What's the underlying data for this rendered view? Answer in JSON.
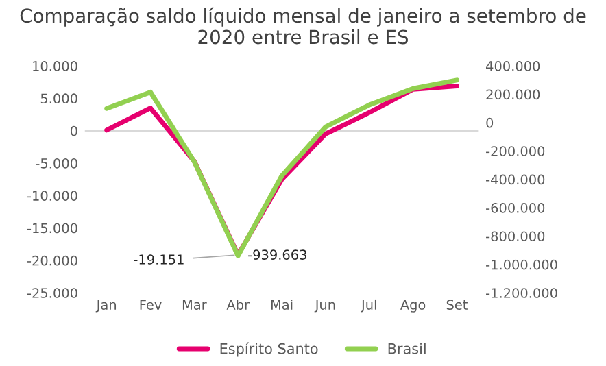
{
  "chart_data": {
    "type": "line",
    "title": "Comparação saldo líquido mensal de janeiro a setembro de 2020 entre Brasil e ES",
    "categories": [
      "Jan",
      "Fev",
      "Mar",
      "Abr",
      "Mai",
      "Jun",
      "Jul",
      "Ago",
      "Set"
    ],
    "series": [
      {
        "name": "Espírito Santo",
        "color": "#e6006e",
        "values": [
          100,
          3500,
          -4700,
          -19151,
          -7500,
          -500,
          2800,
          6400,
          6900
        ],
        "value_labels": [
          null,
          null,
          null,
          "-19.151",
          null,
          null,
          null,
          null,
          null
        ]
      },
      {
        "name": "Brasil",
        "color": "#92d050",
        "axis": "y2",
        "values": [
          100000,
          215000,
          -275000,
          -939663,
          -375000,
          -30000,
          125000,
          240000,
          300000
        ],
        "value_labels": [
          null,
          null,
          null,
          "-939.663",
          null,
          null,
          null,
          null,
          null
        ]
      }
    ],
    "ylim": [
      -25000,
      10000
    ],
    "yticks": [
      {
        "value": -25000,
        "label": "-25.000"
      },
      {
        "value": -20000,
        "label": "-20.000"
      },
      {
        "value": -15000,
        "label": "-15.000"
      },
      {
        "value": -10000,
        "label": "-10.000"
      },
      {
        "value": -5000,
        "label": "-5.000"
      },
      0,
      {
        "value": 5000,
        "label": "5.000"
      },
      {
        "value": 10000,
        "label": "10.000"
      }
    ],
    "y2lim": [
      -1200000,
      400000
    ],
    "y2ticks": [
      {
        "value": -1200000,
        "label": "-1.200.000"
      },
      {
        "value": -1000000,
        "label": "-1.000.000"
      },
      {
        "value": -800000,
        "label": "-800.000"
      },
      {
        "value": -600000,
        "label": "-600.000"
      },
      {
        "value": -400000,
        "label": "-400.000"
      },
      {
        "value": -200000,
        "label": "-200.000"
      },
      0,
      {
        "value": 200000,
        "label": "200.000"
      },
      {
        "value": 400000,
        "label": "400.000"
      }
    ],
    "ref_lines": [
      {
        "axis": "y",
        "value": 0,
        "color": "#d9d9d9"
      }
    ],
    "grid": false,
    "legend": "bottom",
    "marker": "none",
    "line_style": "solid"
  }
}
